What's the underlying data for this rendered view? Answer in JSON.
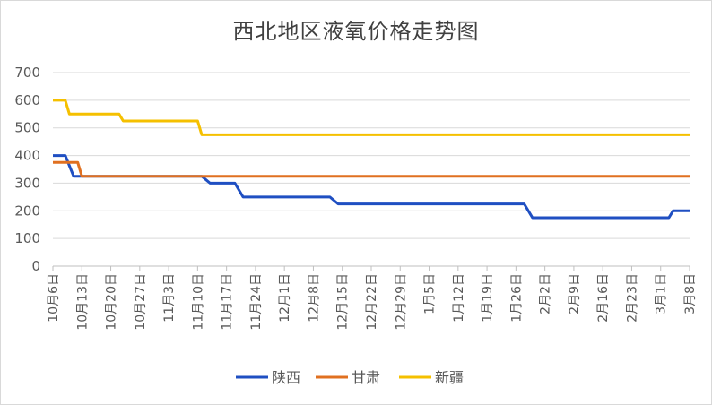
{
  "chart_data": {
    "type": "line",
    "title": "西北地区液氧价格走势图",
    "xlabel": "",
    "ylabel": "",
    "ylim": [
      0,
      700
    ],
    "yticks": [
      0,
      100,
      200,
      300,
      400,
      500,
      600,
      700
    ],
    "grid": {
      "x": false,
      "y": true
    },
    "legend_position": "bottom",
    "x_tick_labels": [
      "10月6日",
      "10月13日",
      "10月20日",
      "10月27日",
      "11月3日",
      "11月10日",
      "11月17日",
      "11月24日",
      "12月1日",
      "12月8日",
      "12月15日",
      "12月22日",
      "12月29日",
      "1月5日",
      "1月12日",
      "1月19日",
      "1月26日",
      "2月2日",
      "2月9日",
      "2月16日",
      "2月23日",
      "3月1日",
      "3月8日"
    ],
    "x_days_count": 154,
    "series": [
      {
        "name": "陕西",
        "color": "#1f4fc2",
        "points": [
          [
            0,
            400
          ],
          [
            3,
            400
          ],
          [
            5,
            325
          ],
          [
            36,
            325
          ],
          [
            38,
            300
          ],
          [
            44,
            300
          ],
          [
            46,
            250
          ],
          [
            67,
            250
          ],
          [
            69,
            225
          ],
          [
            114,
            225
          ],
          [
            116,
            175
          ],
          [
            149,
            175
          ],
          [
            150,
            200
          ],
          [
            154,
            200
          ]
        ]
      },
      {
        "name": "甘肃",
        "color": "#e07020",
        "points": [
          [
            0,
            375
          ],
          [
            6,
            375
          ],
          [
            7,
            325
          ],
          [
            154,
            325
          ]
        ]
      },
      {
        "name": "新疆",
        "color": "#f5c000",
        "points": [
          [
            0,
            600
          ],
          [
            3,
            600
          ],
          [
            4,
            550
          ],
          [
            16,
            550
          ],
          [
            17,
            525
          ],
          [
            35,
            525
          ],
          [
            36,
            475
          ],
          [
            154,
            475
          ]
        ]
      }
    ]
  }
}
